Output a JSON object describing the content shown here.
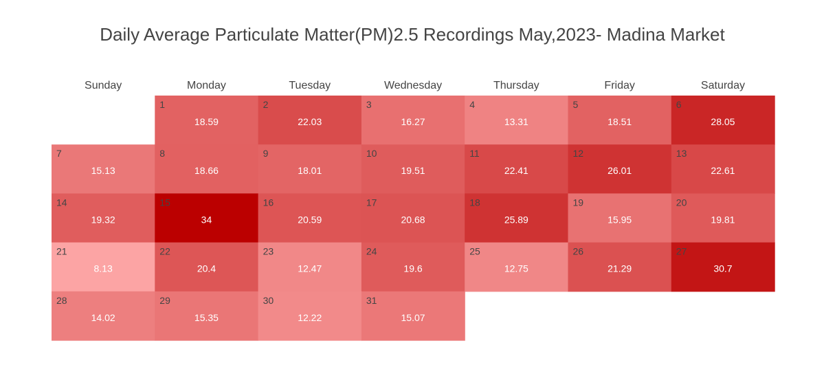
{
  "chart_data": {
    "type": "heatmap",
    "title": "Daily Average Particulate Matter(PM)2.5 Recordings May,2023- Madina Market",
    "weekdays": [
      "Sunday",
      "Monday",
      "Tuesday",
      "Wednesday",
      "Thursday",
      "Friday",
      "Saturday"
    ],
    "first_weekday_index": 1,
    "days": [
      {
        "day": "1",
        "value": 18.59
      },
      {
        "day": "2",
        "value": 22.03
      },
      {
        "day": "3",
        "value": 16.27
      },
      {
        "day": "4",
        "value": 13.31
      },
      {
        "day": "5",
        "value": 18.51
      },
      {
        "day": "6",
        "value": 28.05
      },
      {
        "day": "7",
        "value": 15.13
      },
      {
        "day": "8",
        "value": 18.66
      },
      {
        "day": "9",
        "value": 18.01
      },
      {
        "day": "10",
        "value": 19.51
      },
      {
        "day": "11",
        "value": 22.41
      },
      {
        "day": "12",
        "value": 26.01
      },
      {
        "day": "13",
        "value": 22.61
      },
      {
        "day": "14",
        "value": 19.32
      },
      {
        "day": "15",
        "value": 34
      },
      {
        "day": "16",
        "value": 20.59
      },
      {
        "day": "17",
        "value": 20.68
      },
      {
        "day": "18",
        "value": 25.89
      },
      {
        "day": "19",
        "value": 15.95
      },
      {
        "day": "20",
        "value": 19.81
      },
      {
        "day": "21",
        "value": 8.13
      },
      {
        "day": "22",
        "value": 20.4
      },
      {
        "day": "23",
        "value": 12.47
      },
      {
        "day": "24",
        "value": 19.6
      },
      {
        "day": "25",
        "value": 12.75
      },
      {
        "day": "26",
        "value": 21.29
      },
      {
        "day": "27",
        "value": 30.7
      },
      {
        "day": "28",
        "value": 14.02
      },
      {
        "day": "29",
        "value": 15.35
      },
      {
        "day": "30",
        "value": 12.22
      },
      {
        "day": "31",
        "value": 15.07
      }
    ],
    "color_scale": {
      "low_color": "#fca4a4",
      "high_color": "#bb0000",
      "min": 8.13,
      "max": 34
    }
  }
}
